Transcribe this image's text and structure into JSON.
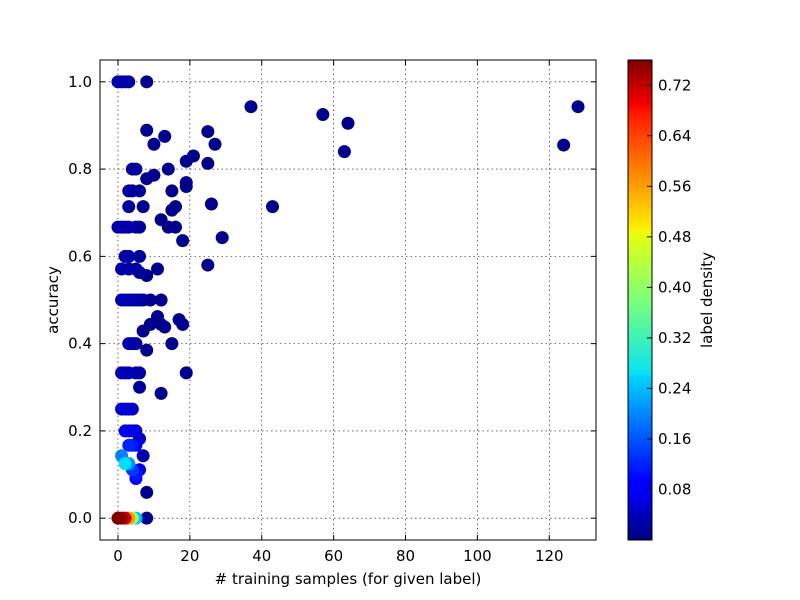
{
  "chart_data": {
    "type": "scatter",
    "xlabel": "# training samples (for given label)",
    "ylabel": "accuracy",
    "xlim": [
      -5,
      133
    ],
    "ylim": [
      -0.05,
      1.05
    ],
    "xticks": [
      0,
      20,
      40,
      60,
      80,
      100,
      120
    ],
    "yticks": [
      0.0,
      0.2,
      0.4,
      0.6,
      0.8,
      1.0
    ],
    "xtick_labels": [
      "0",
      "20",
      "40",
      "60",
      "80",
      "100",
      "120"
    ],
    "ytick_labels": [
      "0.0",
      "0.2",
      "0.4",
      "0.6",
      "0.8",
      "1.0"
    ],
    "grid": true,
    "colorbar": {
      "label": "label density",
      "colormap": "jet",
      "range": [
        0.0,
        0.76
      ],
      "ticks": [
        0.08,
        0.16,
        0.24,
        0.32,
        0.4,
        0.48,
        0.56,
        0.64,
        0.72
      ],
      "tick_labels": [
        "0.08",
        "0.16",
        "0.24",
        "0.32",
        "0.40",
        "0.48",
        "0.56",
        "0.64",
        "0.72"
      ]
    },
    "points": [
      {
        "x": 0,
        "y": 1.0,
        "c": 0.03
      },
      {
        "x": 1,
        "y": 1.0,
        "c": 0.03
      },
      {
        "x": 2,
        "y": 1.0,
        "c": 0.03
      },
      {
        "x": 3,
        "y": 1.0,
        "c": 0.03
      },
      {
        "x": 8,
        "y": 1.0,
        "c": 0.01
      },
      {
        "x": 37,
        "y": 0.943,
        "c": 0.01
      },
      {
        "x": 57,
        "y": 0.925,
        "c": 0.01
      },
      {
        "x": 64,
        "y": 0.905,
        "c": 0.01
      },
      {
        "x": 128,
        "y": 0.943,
        "c": 0.01
      },
      {
        "x": 124,
        "y": 0.855,
        "c": 0.01
      },
      {
        "x": 63,
        "y": 0.84,
        "c": 0.01
      },
      {
        "x": 8,
        "y": 0.889,
        "c": 0.01
      },
      {
        "x": 13,
        "y": 0.875,
        "c": 0.01
      },
      {
        "x": 25,
        "y": 0.886,
        "c": 0.01
      },
      {
        "x": 10,
        "y": 0.857,
        "c": 0.01
      },
      {
        "x": 27,
        "y": 0.857,
        "c": 0.01
      },
      {
        "x": 21,
        "y": 0.83,
        "c": 0.01
      },
      {
        "x": 19,
        "y": 0.818,
        "c": 0.01
      },
      {
        "x": 25,
        "y": 0.813,
        "c": 0.01
      },
      {
        "x": 4,
        "y": 0.8,
        "c": 0.02
      },
      {
        "x": 5,
        "y": 0.8,
        "c": 0.02
      },
      {
        "x": 14,
        "y": 0.8,
        "c": 0.01
      },
      {
        "x": 8,
        "y": 0.778,
        "c": 0.01
      },
      {
        "x": 10,
        "y": 0.786,
        "c": 0.01
      },
      {
        "x": 19,
        "y": 0.769,
        "c": 0.01
      },
      {
        "x": 19,
        "y": 0.76,
        "c": 0.01
      },
      {
        "x": 3,
        "y": 0.75,
        "c": 0.02
      },
      {
        "x": 4,
        "y": 0.75,
        "c": 0.02
      },
      {
        "x": 6,
        "y": 0.75,
        "c": 0.02
      },
      {
        "x": 15,
        "y": 0.75,
        "c": 0.01
      },
      {
        "x": 26,
        "y": 0.72,
        "c": 0.01
      },
      {
        "x": 3,
        "y": 0.714,
        "c": 0.02
      },
      {
        "x": 7,
        "y": 0.714,
        "c": 0.01
      },
      {
        "x": 16,
        "y": 0.714,
        "c": 0.01
      },
      {
        "x": 15,
        "y": 0.706,
        "c": 0.01
      },
      {
        "x": 43,
        "y": 0.714,
        "c": 0.01
      },
      {
        "x": 12,
        "y": 0.684,
        "c": 0.01
      },
      {
        "x": 0,
        "y": 0.667,
        "c": 0.03
      },
      {
        "x": 1,
        "y": 0.667,
        "c": 0.03
      },
      {
        "x": 2,
        "y": 0.667,
        "c": 0.03
      },
      {
        "x": 3,
        "y": 0.667,
        "c": 0.03
      },
      {
        "x": 5,
        "y": 0.667,
        "c": 0.02
      },
      {
        "x": 6,
        "y": 0.667,
        "c": 0.02
      },
      {
        "x": 14,
        "y": 0.667,
        "c": 0.01
      },
      {
        "x": 16,
        "y": 0.667,
        "c": 0.01
      },
      {
        "x": 29,
        "y": 0.643,
        "c": 0.01
      },
      {
        "x": 18,
        "y": 0.636,
        "c": 0.01
      },
      {
        "x": 2,
        "y": 0.6,
        "c": 0.03
      },
      {
        "x": 3,
        "y": 0.6,
        "c": 0.03
      },
      {
        "x": 6,
        "y": 0.6,
        "c": 0.02
      },
      {
        "x": 1,
        "y": 0.571,
        "c": 0.03
      },
      {
        "x": 3,
        "y": 0.571,
        "c": 0.03
      },
      {
        "x": 5,
        "y": 0.571,
        "c": 0.02
      },
      {
        "x": 6,
        "y": 0.563,
        "c": 0.02
      },
      {
        "x": 8,
        "y": 0.556,
        "c": 0.01
      },
      {
        "x": 11,
        "y": 0.571,
        "c": 0.01
      },
      {
        "x": 25,
        "y": 0.58,
        "c": 0.01
      },
      {
        "x": 1,
        "y": 0.5,
        "c": 0.04
      },
      {
        "x": 2,
        "y": 0.5,
        "c": 0.04
      },
      {
        "x": 3,
        "y": 0.5,
        "c": 0.04
      },
      {
        "x": 4,
        "y": 0.5,
        "c": 0.03
      },
      {
        "x": 5,
        "y": 0.5,
        "c": 0.03
      },
      {
        "x": 6,
        "y": 0.5,
        "c": 0.02
      },
      {
        "x": 7,
        "y": 0.5,
        "c": 0.02
      },
      {
        "x": 9,
        "y": 0.5,
        "c": 0.01
      },
      {
        "x": 12,
        "y": 0.5,
        "c": 0.01
      },
      {
        "x": 17,
        "y": 0.455,
        "c": 0.01
      },
      {
        "x": 18,
        "y": 0.444,
        "c": 0.01
      },
      {
        "x": 11,
        "y": 0.462,
        "c": 0.01
      },
      {
        "x": 9,
        "y": 0.444,
        "c": 0.01
      },
      {
        "x": 12,
        "y": 0.444,
        "c": 0.01
      },
      {
        "x": 13,
        "y": 0.438,
        "c": 0.01
      },
      {
        "x": 7,
        "y": 0.429,
        "c": 0.01
      },
      {
        "x": 3,
        "y": 0.4,
        "c": 0.03
      },
      {
        "x": 4,
        "y": 0.4,
        "c": 0.03
      },
      {
        "x": 5,
        "y": 0.4,
        "c": 0.02
      },
      {
        "x": 15,
        "y": 0.4,
        "c": 0.01
      },
      {
        "x": 8,
        "y": 0.385,
        "c": 0.01
      },
      {
        "x": 1,
        "y": 0.333,
        "c": 0.04
      },
      {
        "x": 2,
        "y": 0.333,
        "c": 0.04
      },
      {
        "x": 3,
        "y": 0.333,
        "c": 0.04
      },
      {
        "x": 5,
        "y": 0.333,
        "c": 0.03
      },
      {
        "x": 6,
        "y": 0.333,
        "c": 0.02
      },
      {
        "x": 19,
        "y": 0.333,
        "c": 0.01
      },
      {
        "x": 6,
        "y": 0.3,
        "c": 0.02
      },
      {
        "x": 12,
        "y": 0.286,
        "c": 0.01
      },
      {
        "x": 1,
        "y": 0.25,
        "c": 0.06
      },
      {
        "x": 2,
        "y": 0.25,
        "c": 0.06
      },
      {
        "x": 3,
        "y": 0.25,
        "c": 0.06
      },
      {
        "x": 4,
        "y": 0.25,
        "c": 0.05
      },
      {
        "x": 2,
        "y": 0.2,
        "c": 0.08
      },
      {
        "x": 3,
        "y": 0.2,
        "c": 0.08
      },
      {
        "x": 4,
        "y": 0.2,
        "c": 0.07
      },
      {
        "x": 5,
        "y": 0.2,
        "c": 0.06
      },
      {
        "x": 6,
        "y": 0.182,
        "c": 0.05
      },
      {
        "x": 3,
        "y": 0.167,
        "c": 0.12
      },
      {
        "x": 4,
        "y": 0.167,
        "c": 0.11
      },
      {
        "x": 5,
        "y": 0.167,
        "c": 0.09
      },
      {
        "x": 1,
        "y": 0.143,
        "c": 0.19
      },
      {
        "x": 7,
        "y": 0.143,
        "c": 0.03
      },
      {
        "x": 2,
        "y": 0.125,
        "c": 0.26
      },
      {
        "x": 3,
        "y": 0.125,
        "c": 0.2
      },
      {
        "x": 4,
        "y": 0.111,
        "c": 0.14
      },
      {
        "x": 6,
        "y": 0.111,
        "c": 0.07
      },
      {
        "x": 5,
        "y": 0.1,
        "c": 0.11
      },
      {
        "x": 5,
        "y": 0.091,
        "c": 0.09
      },
      {
        "x": 8,
        "y": 0.059,
        "c": 0.01
      },
      {
        "x": 8,
        "y": 0.0,
        "c": 0.01
      },
      {
        "x": 5,
        "y": 0.0,
        "c": 0.24
      },
      {
        "x": 4,
        "y": 0.0,
        "c": 0.4
      },
      {
        "x": 3,
        "y": 0.0,
        "c": 0.55
      },
      {
        "x": 2,
        "y": 0.0,
        "c": 0.7
      },
      {
        "x": 1,
        "y": 0.0,
        "c": 0.74
      },
      {
        "x": 0,
        "y": 0.0,
        "c": 0.76
      }
    ]
  }
}
